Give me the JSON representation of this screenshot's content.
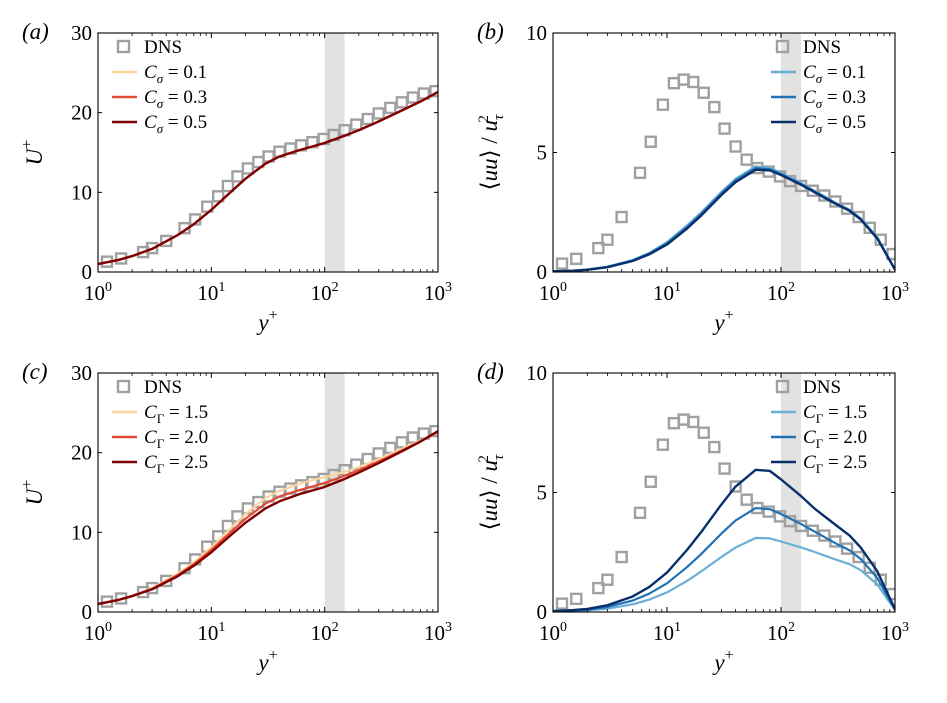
{
  "figure": {
    "panel_count": 4,
    "layout": "2x2 grid",
    "background": "#ffffff"
  },
  "chart_data": [
    {
      "id": "a",
      "type": "line",
      "panel_label": "(a)",
      "title": "",
      "xlabel": "y+",
      "ylabel": "U+",
      "xscale": "log",
      "xlim": [
        1,
        1000
      ],
      "ylim": [
        0,
        30
      ],
      "xticks": [
        1,
        10,
        100,
        1000
      ],
      "xtick_labels": [
        {
          "base": "10",
          "exp": "0"
        },
        {
          "base": "10",
          "exp": "1"
        },
        {
          "base": "10",
          "exp": "2"
        },
        {
          "base": "10",
          "exp": "3"
        }
      ],
      "yticks": [
        0,
        10,
        20,
        30
      ],
      "ytick_labels": [
        "0",
        "10",
        "20",
        "30"
      ],
      "shaded_band": [
        100,
        150
      ],
      "band_color": "#e2e2e2",
      "legend_position": "top-left",
      "dns": {
        "name": "DNS",
        "color": "#a0a0a0",
        "x": [
          1.2,
          1.6,
          2.5,
          3,
          4,
          5.8,
          7.2,
          9.2,
          11.5,
          14,
          17,
          21,
          26,
          32,
          40,
          50,
          62,
          78,
          98,
          120,
          150,
          190,
          240,
          300,
          380,
          480,
          600,
          750,
          950
        ],
        "y": [
          1.3,
          1.7,
          2.5,
          3.0,
          3.9,
          5.5,
          6.6,
          8.2,
          9.5,
          10.8,
          12.0,
          13.0,
          13.8,
          14.5,
          15.1,
          15.5,
          15.9,
          16.3,
          16.7,
          17.2,
          17.8,
          18.5,
          19.2,
          19.9,
          20.6,
          21.3,
          21.9,
          22.4,
          22.7
        ]
      },
      "series": [
        {
          "name": "Cσ = 0.1",
          "legend": {
            "sym": "C",
            "sub": "σ",
            "value": " = 0.1"
          },
          "color": "#fdd49e",
          "width": 2.2,
          "x": [
            1,
            1.5,
            2,
            3,
            5,
            7,
            10,
            15,
            20,
            30,
            40,
            60,
            80,
            100,
            150,
            200,
            300,
            500,
            700,
            1000
          ],
          "y": [
            1.0,
            1.5,
            2.0,
            2.9,
            4.6,
            6.0,
            7.8,
            10.1,
            11.7,
            13.6,
            14.5,
            15.3,
            15.8,
            16.2,
            17.1,
            17.8,
            18.9,
            20.4,
            21.4,
            22.6
          ]
        },
        {
          "name": "Cσ = 0.3",
          "legend": {
            "sym": "C",
            "sub": "σ",
            "value": " = 0.3"
          },
          "color": "#e34a33",
          "width": 2.2,
          "x": [
            1,
            1.5,
            2,
            3,
            5,
            7,
            10,
            15,
            20,
            30,
            40,
            60,
            80,
            100,
            150,
            200,
            300,
            500,
            700,
            1000
          ],
          "y": [
            1.0,
            1.5,
            2.0,
            2.9,
            4.6,
            6.0,
            7.8,
            10.1,
            11.7,
            13.6,
            14.5,
            15.3,
            15.8,
            16.2,
            17.1,
            17.8,
            18.9,
            20.4,
            21.4,
            22.6
          ]
        },
        {
          "name": "Cσ = 0.5",
          "legend": {
            "sym": "C",
            "sub": "σ",
            "value": " = 0.5"
          },
          "color": "#7f0000",
          "width": 2.4,
          "x": [
            1,
            1.5,
            2,
            3,
            5,
            7,
            10,
            15,
            20,
            30,
            40,
            60,
            80,
            100,
            150,
            200,
            300,
            500,
            700,
            1000
          ],
          "y": [
            1.0,
            1.5,
            2.0,
            2.9,
            4.6,
            6.0,
            7.8,
            10.1,
            11.7,
            13.6,
            14.5,
            15.3,
            15.8,
            16.2,
            17.1,
            17.8,
            18.9,
            20.4,
            21.4,
            22.6
          ]
        }
      ]
    },
    {
      "id": "b",
      "type": "line",
      "panel_label": "(b)",
      "title": "",
      "xlabel": "y+",
      "ylabel": "⟨uu⟩ / uτ²",
      "xscale": "log",
      "xlim": [
        1,
        1000
      ],
      "ylim": [
        0,
        10
      ],
      "xticks": [
        1,
        10,
        100,
        1000
      ],
      "xtick_labels": [
        {
          "base": "10",
          "exp": "0"
        },
        {
          "base": "10",
          "exp": "1"
        },
        {
          "base": "10",
          "exp": "2"
        },
        {
          "base": "10",
          "exp": "3"
        }
      ],
      "yticks": [
        0,
        5,
        10
      ],
      "ytick_labels": [
        "0",
        "5",
        "10"
      ],
      "shaded_band": [
        100,
        150
      ],
      "band_color": "#e2e2e2",
      "legend_position": "top-right",
      "dns": {
        "name": "DNS",
        "color": "#a0a0a0",
        "x": [
          1.2,
          1.6,
          2.5,
          3,
          4,
          5.8,
          7.2,
          9.2,
          11.5,
          14,
          17,
          21,
          26,
          32,
          40,
          50,
          62,
          78,
          98,
          120,
          150,
          190,
          240,
          300,
          380,
          480,
          600,
          750,
          950
        ],
        "y": [
          0.35,
          0.55,
          1.0,
          1.35,
          2.3,
          4.15,
          5.45,
          7.0,
          7.9,
          8.05,
          7.95,
          7.5,
          6.9,
          6.0,
          5.25,
          4.7,
          4.35,
          4.2,
          4.0,
          3.8,
          3.6,
          3.4,
          3.2,
          2.95,
          2.65,
          2.3,
          1.85,
          1.35,
          0.75
        ]
      },
      "series": [
        {
          "name": "Cσ = 0.1",
          "legend": {
            "sym": "C",
            "sub": "σ",
            "value": " = 0.1"
          },
          "color": "#6baed6",
          "width": 2.2,
          "x": [
            1,
            1.5,
            2,
            3,
            5,
            7,
            10,
            15,
            20,
            30,
            40,
            60,
            80,
            100,
            150,
            200,
            300,
            400,
            500,
            700,
            1000
          ],
          "y": [
            0.03,
            0.06,
            0.1,
            0.22,
            0.5,
            0.8,
            1.25,
            1.95,
            2.5,
            3.35,
            3.9,
            4.42,
            4.35,
            4.15,
            3.72,
            3.38,
            2.9,
            2.6,
            2.25,
            1.45,
            0.1
          ]
        },
        {
          "name": "Cσ = 0.3",
          "legend": {
            "sym": "C",
            "sub": "σ",
            "value": " = 0.3"
          },
          "color": "#2171b5",
          "width": 2.2,
          "x": [
            1,
            1.5,
            2,
            3,
            5,
            7,
            10,
            15,
            20,
            30,
            40,
            60,
            80,
            100,
            150,
            200,
            300,
            400,
            500,
            700,
            1000
          ],
          "y": [
            0.03,
            0.06,
            0.1,
            0.21,
            0.48,
            0.77,
            1.2,
            1.88,
            2.43,
            3.28,
            3.83,
            4.35,
            4.3,
            4.1,
            3.68,
            3.35,
            2.88,
            2.58,
            2.22,
            1.42,
            0.1
          ]
        },
        {
          "name": "Cσ = 0.5",
          "legend": {
            "sym": "C",
            "sub": "σ",
            "value": " = 0.5"
          },
          "color": "#08306b",
          "width": 2.4,
          "x": [
            1,
            1.5,
            2,
            3,
            5,
            7,
            10,
            15,
            20,
            30,
            40,
            60,
            80,
            100,
            150,
            200,
            300,
            400,
            500,
            700,
            1000
          ],
          "y": [
            0.03,
            0.05,
            0.09,
            0.2,
            0.46,
            0.74,
            1.15,
            1.82,
            2.37,
            3.22,
            3.76,
            4.28,
            4.25,
            4.06,
            3.65,
            3.32,
            2.86,
            2.56,
            2.2,
            1.4,
            0.1
          ]
        }
      ]
    },
    {
      "id": "c",
      "type": "line",
      "panel_label": "(c)",
      "title": "",
      "xlabel": "y+",
      "ylabel": "U+",
      "xscale": "log",
      "xlim": [
        1,
        1000
      ],
      "ylim": [
        0,
        30
      ],
      "xticks": [
        1,
        10,
        100,
        1000
      ],
      "xtick_labels": [
        {
          "base": "10",
          "exp": "0"
        },
        {
          "base": "10",
          "exp": "1"
        },
        {
          "base": "10",
          "exp": "2"
        },
        {
          "base": "10",
          "exp": "3"
        }
      ],
      "yticks": [
        0,
        10,
        20,
        30
      ],
      "ytick_labels": [
        "0",
        "10",
        "20",
        "30"
      ],
      "shaded_band": [
        100,
        150
      ],
      "band_color": "#e2e2e2",
      "legend_position": "top-left",
      "dns": {
        "name": "DNS",
        "color": "#a0a0a0",
        "x": [
          1.2,
          1.6,
          2.5,
          3,
          4,
          5.8,
          7.2,
          9.2,
          11.5,
          14,
          17,
          21,
          26,
          32,
          40,
          50,
          62,
          78,
          98,
          120,
          150,
          190,
          240,
          300,
          380,
          480,
          600,
          750,
          950
        ],
        "y": [
          1.3,
          1.7,
          2.5,
          3.0,
          3.9,
          5.5,
          6.6,
          8.2,
          9.5,
          10.8,
          12.0,
          13.0,
          13.8,
          14.5,
          15.1,
          15.5,
          15.9,
          16.3,
          16.7,
          17.2,
          17.8,
          18.5,
          19.2,
          19.9,
          20.6,
          21.3,
          21.9,
          22.4,
          22.7
        ]
      },
      "series": [
        {
          "name": "CΓ = 1.5",
          "legend": {
            "sym": "C",
            "sub": "Γ",
            "value": " = 1.5"
          },
          "color": "#fdd49e",
          "width": 2.2,
          "x": [
            1,
            1.5,
            2,
            3,
            5,
            7,
            10,
            15,
            20,
            30,
            40,
            60,
            80,
            100,
            150,
            200,
            300,
            500,
            700,
            1000
          ],
          "y": [
            1.0,
            1.5,
            2.0,
            3.0,
            4.75,
            6.2,
            8.1,
            10.6,
            12.3,
            14.3,
            15.2,
            16.1,
            16.6,
            16.9,
            17.6,
            18.2,
            19.2,
            20.6,
            21.5,
            22.5
          ]
        },
        {
          "name": "CΓ = 2.0",
          "legend": {
            "sym": "C",
            "sub": "Γ",
            "value": " = 2.0"
          },
          "color": "#e34a33",
          "width": 2.2,
          "x": [
            1,
            1.5,
            2,
            3,
            5,
            7,
            10,
            15,
            20,
            30,
            40,
            60,
            80,
            100,
            150,
            200,
            300,
            500,
            700,
            1000
          ],
          "y": [
            1.0,
            1.5,
            2.0,
            2.9,
            4.6,
            6.0,
            7.8,
            10.1,
            11.7,
            13.6,
            14.5,
            15.3,
            15.8,
            16.2,
            17.1,
            17.8,
            18.9,
            20.4,
            21.4,
            22.6
          ]
        },
        {
          "name": "CΓ = 2.5",
          "legend": {
            "sym": "C",
            "sub": "Γ",
            "value": " = 2.5"
          },
          "color": "#7f0000",
          "width": 2.4,
          "x": [
            1,
            1.5,
            2,
            3,
            5,
            7,
            10,
            15,
            20,
            30,
            40,
            60,
            80,
            100,
            150,
            200,
            300,
            500,
            700,
            1000
          ],
          "y": [
            1.0,
            1.5,
            2.0,
            2.85,
            4.45,
            5.8,
            7.5,
            9.7,
            11.2,
            13.0,
            13.9,
            14.8,
            15.3,
            15.7,
            16.7,
            17.5,
            18.7,
            20.3,
            21.4,
            22.7
          ]
        }
      ]
    },
    {
      "id": "d",
      "type": "line",
      "panel_label": "(d)",
      "title": "",
      "xlabel": "y+",
      "ylabel": "⟨uu⟩ / uτ²",
      "xscale": "log",
      "xlim": [
        1,
        1000
      ],
      "ylim": [
        0,
        10
      ],
      "xticks": [
        1,
        10,
        100,
        1000
      ],
      "xtick_labels": [
        {
          "base": "10",
          "exp": "0"
        },
        {
          "base": "10",
          "exp": "1"
        },
        {
          "base": "10",
          "exp": "2"
        },
        {
          "base": "10",
          "exp": "3"
        }
      ],
      "yticks": [
        0,
        5,
        10
      ],
      "ytick_labels": [
        "0",
        "5",
        "10"
      ],
      "shaded_band": [
        100,
        150
      ],
      "band_color": "#e2e2e2",
      "legend_position": "top-right",
      "dns": {
        "name": "DNS",
        "color": "#a0a0a0",
        "x": [
          1.2,
          1.6,
          2.5,
          3,
          4,
          5.8,
          7.2,
          9.2,
          11.5,
          14,
          17,
          21,
          26,
          32,
          40,
          50,
          62,
          78,
          98,
          120,
          150,
          190,
          240,
          300,
          380,
          480,
          600,
          750,
          950
        ],
        "y": [
          0.35,
          0.55,
          1.0,
          1.35,
          2.3,
          4.15,
          5.45,
          7.0,
          7.9,
          8.05,
          7.95,
          7.5,
          6.9,
          6.0,
          5.25,
          4.7,
          4.35,
          4.2,
          4.0,
          3.8,
          3.6,
          3.4,
          3.2,
          2.95,
          2.65,
          2.3,
          1.85,
          1.35,
          0.75
        ]
      },
      "series": [
        {
          "name": "CΓ = 1.5",
          "legend": {
            "sym": "C",
            "sub": "Γ",
            "value": " = 1.5"
          },
          "color": "#6baed6",
          "width": 2.2,
          "x": [
            1,
            1.5,
            2,
            3,
            5,
            7,
            10,
            15,
            20,
            30,
            40,
            60,
            80,
            100,
            150,
            200,
            300,
            400,
            500,
            700,
            1000
          ],
          "y": [
            0.02,
            0.04,
            0.07,
            0.14,
            0.32,
            0.52,
            0.82,
            1.3,
            1.7,
            2.3,
            2.7,
            3.1,
            3.08,
            2.95,
            2.7,
            2.5,
            2.2,
            2.0,
            1.75,
            1.15,
            0.08
          ]
        },
        {
          "name": "CΓ = 2.0",
          "legend": {
            "sym": "C",
            "sub": "Γ",
            "value": " = 2.0"
          },
          "color": "#2171b5",
          "width": 2.2,
          "x": [
            1,
            1.5,
            2,
            3,
            5,
            7,
            10,
            15,
            20,
            30,
            40,
            60,
            80,
            100,
            150,
            200,
            300,
            400,
            500,
            700,
            1000
          ],
          "y": [
            0.03,
            0.06,
            0.1,
            0.21,
            0.48,
            0.77,
            1.2,
            1.88,
            2.43,
            3.28,
            3.83,
            4.35,
            4.3,
            4.1,
            3.68,
            3.35,
            2.88,
            2.58,
            2.22,
            1.42,
            0.1
          ]
        },
        {
          "name": "CΓ = 2.5",
          "legend": {
            "sym": "C",
            "sub": "Γ",
            "value": " = 2.5"
          },
          "color": "#08306b",
          "width": 2.4,
          "x": [
            1,
            1.5,
            2,
            3,
            5,
            7,
            10,
            15,
            20,
            30,
            40,
            60,
            80,
            100,
            150,
            200,
            300,
            400,
            500,
            700,
            1000
          ],
          "y": [
            0.04,
            0.08,
            0.13,
            0.28,
            0.65,
            1.05,
            1.65,
            2.6,
            3.35,
            4.5,
            5.25,
            5.95,
            5.9,
            5.55,
            4.85,
            4.3,
            3.65,
            3.2,
            2.7,
            1.7,
            0.12
          ]
        }
      ]
    }
  ]
}
